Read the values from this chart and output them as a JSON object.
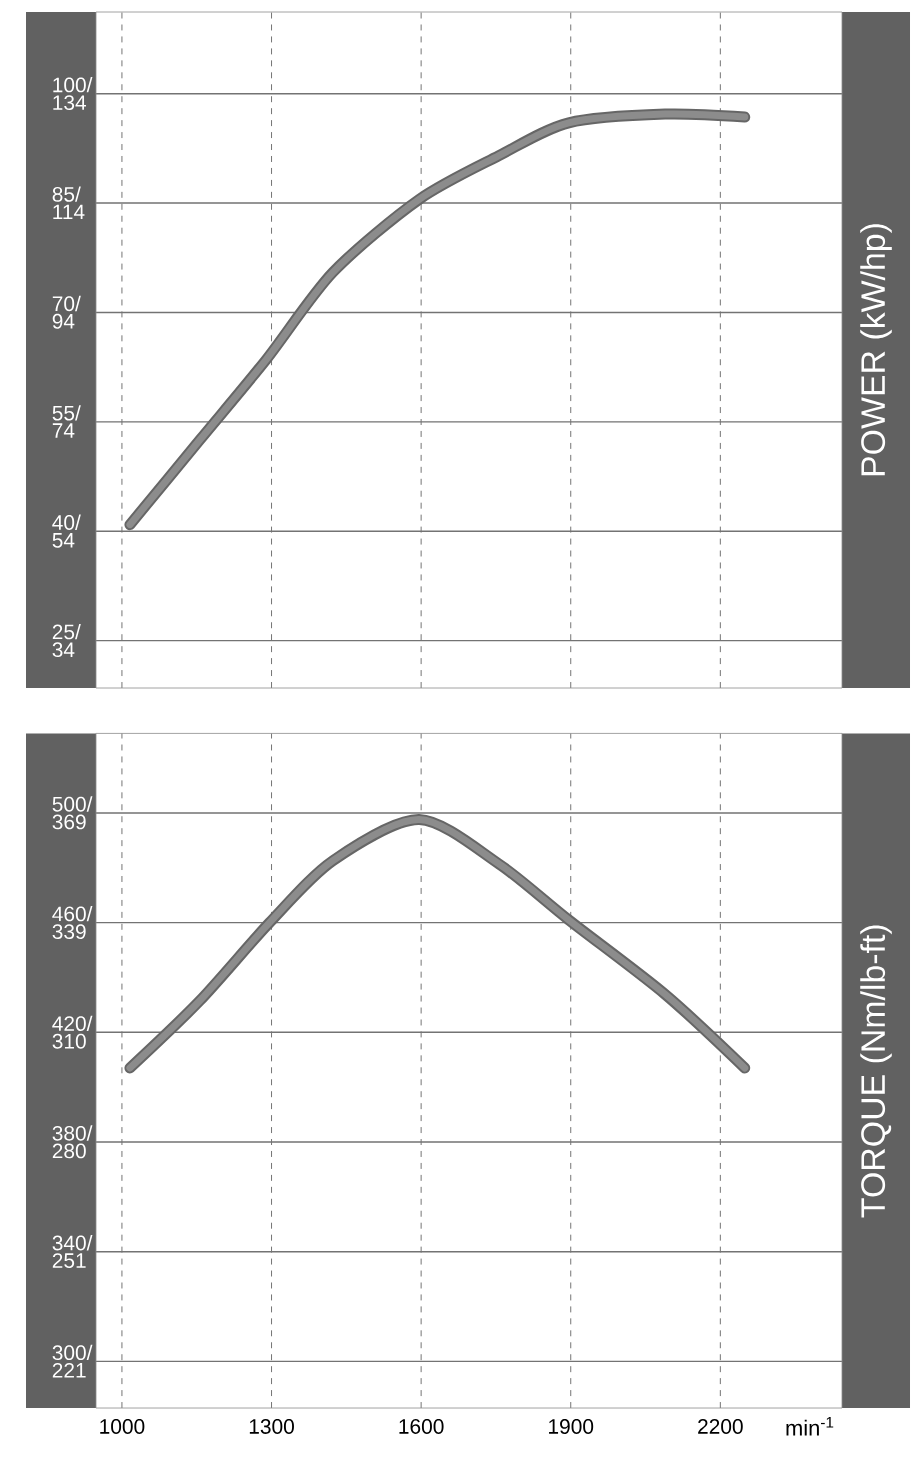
{
  "chart_data": [
    {
      "type": "line",
      "ylabel": "POWER  (kW/hp)",
      "x": [
        1016,
        1156,
        1289,
        1423,
        1596,
        1756,
        1896,
        2089,
        2249
      ],
      "series": [
        {
          "color": "#8c8c8c",
          "values": [
            40.9,
            52.5,
            63.5,
            75.5,
            85.5,
            91.5,
            96.0,
            97.2,
            96.8
          ]
        }
      ],
      "xlim": [
        948,
        2444
      ],
      "xticks": [
        {
          "value": 1000,
          "label": null
        },
        {
          "value": 1300,
          "label": null
        },
        {
          "value": 1600,
          "label": null
        },
        {
          "value": 1900,
          "label": null
        },
        {
          "value": 2200,
          "label": null
        }
      ],
      "ylim": [
        18.5,
        111.2
      ],
      "yticks": [
        {
          "value": 25,
          "label": "25/"
        },
        {
          "value": 40,
          "label": "40/"
        },
        {
          "value": 55,
          "label": "55/"
        },
        {
          "value": 70,
          "label": "70/"
        },
        {
          "value": 85,
          "label": "85/"
        },
        {
          "value": 100,
          "label": "100/"
        }
      ],
      "y2lim": [
        24.8,
        149.1
      ],
      "y2ticks": [
        {
          "value": 33.5,
          "label": "34"
        },
        {
          "value": 53.6,
          "label": "54"
        },
        {
          "value": 73.8,
          "label": "74"
        },
        {
          "value": 93.9,
          "label": "94"
        },
        {
          "value": 114.0,
          "label": "114"
        },
        {
          "value": 134.1,
          "label": "134"
        }
      ],
      "grid": true,
      "line_style": "solid",
      "tick_labels": "y"
    },
    {
      "type": "line",
      "ylabel": "TORQUE  (Nm/lb-ft)",
      "xlabel": "min$^{-1}$",
      "x": [
        1016,
        1156,
        1296,
        1423,
        1596,
        1756,
        1896,
        2089,
        2249
      ],
      "series": [
        {
          "color": "#8c8c8c",
          "values": [
            407,
            431.5,
            460,
            482.6,
            497.6,
            481.4,
            461,
            433.9,
            407
          ]
        }
      ],
      "xlim": [
        948,
        2444
      ],
      "xticks": [
        1000,
        1300,
        1600,
        1900,
        2200
      ],
      "ylim": [
        283,
        529
      ],
      "yticks": [
        {
          "value": 300,
          "label": "300/"
        },
        {
          "value": 340,
          "label": "340/"
        },
        {
          "value": 380,
          "label": "380/"
        },
        {
          "value": 420,
          "label": "420/"
        },
        {
          "value": 460,
          "label": "460/"
        },
        {
          "value": 500,
          "label": "500/"
        }
      ],
      "y2lim": [
        208.7,
        390.2
      ],
      "y2ticks": [
        {
          "value": 221.3,
          "label": "221"
        },
        {
          "value": 250.8,
          "label": "251"
        },
        {
          "value": 280.3,
          "label": "280"
        },
        {
          "value": 309.8,
          "label": "310"
        },
        {
          "value": 339.3,
          "label": "339"
        },
        {
          "value": 368.8,
          "label": "369"
        }
      ],
      "grid": true,
      "line_style": "solid"
    }
  ]
}
